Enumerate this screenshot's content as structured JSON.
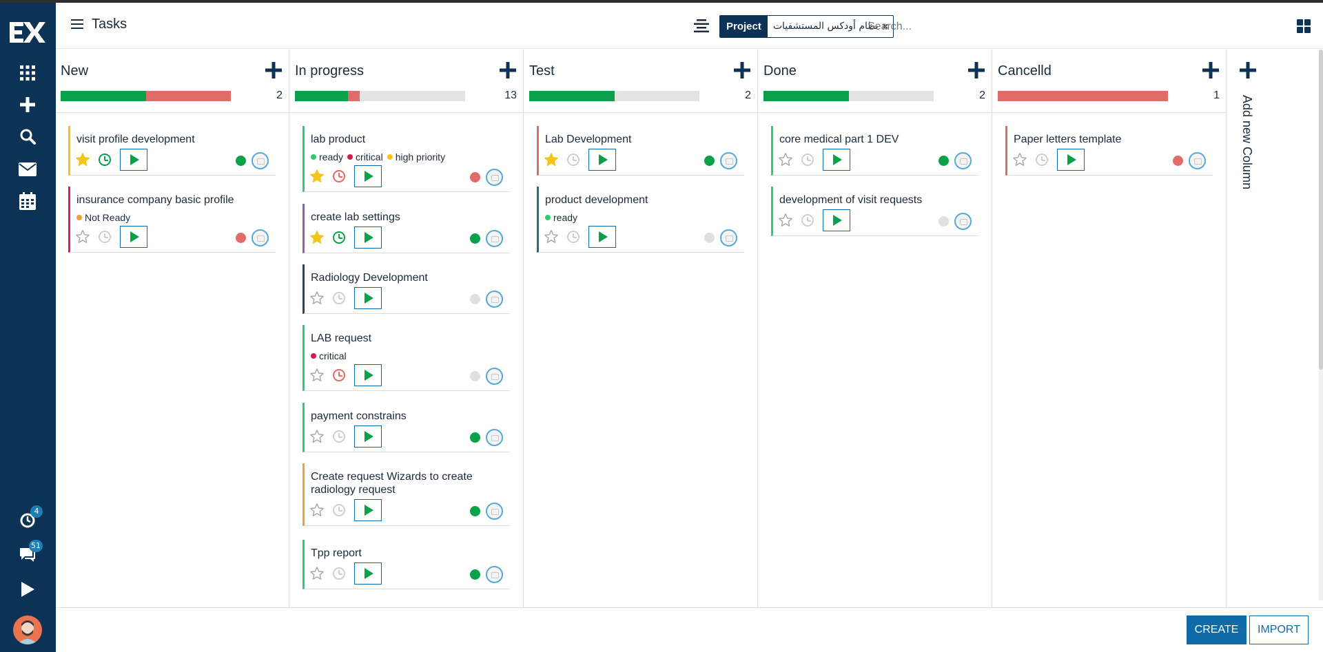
{
  "header": {
    "title": "Tasks",
    "facet_label": "Project",
    "facet_value": "نظام أودكس المستشفيات",
    "facet_remove": "×",
    "search_placeholder": "Search..."
  },
  "sidebar": {
    "icons": [
      {
        "name": "apps-grid-icon"
      },
      {
        "name": "plus-icon"
      },
      {
        "name": "search-icon"
      },
      {
        "name": "mail-icon"
      },
      {
        "name": "calendar-icon"
      },
      {
        "name": "activity-icon",
        "badge": "4"
      },
      {
        "name": "chat-icon",
        "badge": "51"
      },
      {
        "name": "play-icon"
      }
    ]
  },
  "colors": {
    "sidebar_bg": "#0c3356",
    "green": "#0ba14b",
    "red": "#e06c6a",
    "yellow": "#f5c518",
    "accent_blue": "#0e6ba8"
  },
  "columns": [
    {
      "title": "New",
      "count": "2",
      "progress": {
        "green": 0.5,
        "red": 0.5
      },
      "cards": [
        {
          "title": "visit profile development",
          "color": "#f4c21b",
          "starred": true,
          "clock": "green",
          "state": "green",
          "tags": []
        },
        {
          "title": "insurance company basic profile",
          "color": "#d91a6a",
          "starred": false,
          "clock": "gray",
          "state": "red",
          "tags": [
            {
              "label": "Not Ready",
              "color": "#f29d38"
            }
          ]
        }
      ]
    },
    {
      "title": "In progress",
      "count": "13",
      "progress": {
        "green": 0.31,
        "red": 0.07
      },
      "cards": [
        {
          "title": "lab product",
          "color": "#2ecc71",
          "starred": true,
          "clock": "red",
          "state": "red",
          "tags": [
            {
              "label": "ready",
              "color": "#2ecc71"
            },
            {
              "label": "critical",
              "color": "#d91a4a"
            },
            {
              "label": "high priority",
              "color": "#f5c518"
            }
          ]
        },
        {
          "title": "create lab settings",
          "color": "#9b59b6",
          "starred": true,
          "clock": "green",
          "state": "green",
          "tags": []
        },
        {
          "title": "Radiology Development",
          "color": "#2c3e6b",
          "starred": false,
          "clock": "gray",
          "state": "gray",
          "tags": []
        },
        {
          "title": "LAB request",
          "color": "#2ecc71",
          "starred": false,
          "clock": "red",
          "state": "gray",
          "tags": [
            {
              "label": "critical",
              "color": "#d91a4a"
            }
          ]
        },
        {
          "title": "payment constrains",
          "color": "#2ecc71",
          "starred": false,
          "clock": "gray",
          "state": "green",
          "tags": []
        },
        {
          "title": "Create request Wizards to create radiology request",
          "color": "#f29d38",
          "starred": false,
          "clock": "gray",
          "state": "green",
          "tags": []
        },
        {
          "title": "Tpp report",
          "color": "#2ecc71",
          "starred": false,
          "clock": "gray",
          "state": "green",
          "tags": []
        }
      ]
    },
    {
      "title": "Test",
      "count": "2",
      "progress": {
        "green": 0.5,
        "red": 0
      },
      "cards": [
        {
          "title": "Lab Development",
          "color": "#e06c6a",
          "starred": true,
          "clock": "gray",
          "state": "green",
          "tags": []
        },
        {
          "title": "product development",
          "color": "#1f6f8b",
          "starred": false,
          "clock": "gray",
          "state": "gray",
          "tags": [
            {
              "label": "ready",
              "color": "#2ecc71"
            }
          ]
        }
      ]
    },
    {
      "title": "Done",
      "count": "2",
      "progress": {
        "green": 0.5,
        "red": 0
      },
      "cards": [
        {
          "title": "core medical part 1 DEV",
          "color": "#2ecc71",
          "starred": false,
          "clock": "gray",
          "state": "green",
          "tags": []
        },
        {
          "title": "development of visit requests",
          "color": "#2ecc71",
          "starred": false,
          "clock": "gray",
          "state": "gray",
          "tags": []
        }
      ]
    },
    {
      "title": "Cancelld",
      "count": "1",
      "progress": {
        "green": 0,
        "red": 1
      },
      "cards": [
        {
          "title": "Paper letters template",
          "color": "#e06c6a",
          "starred": false,
          "clock": "gray",
          "state": "red",
          "tags": []
        }
      ]
    }
  ],
  "add_column": {
    "label": "Add new Column"
  },
  "footer": {
    "create_label": "CREATE",
    "import_label": "IMPORT"
  }
}
